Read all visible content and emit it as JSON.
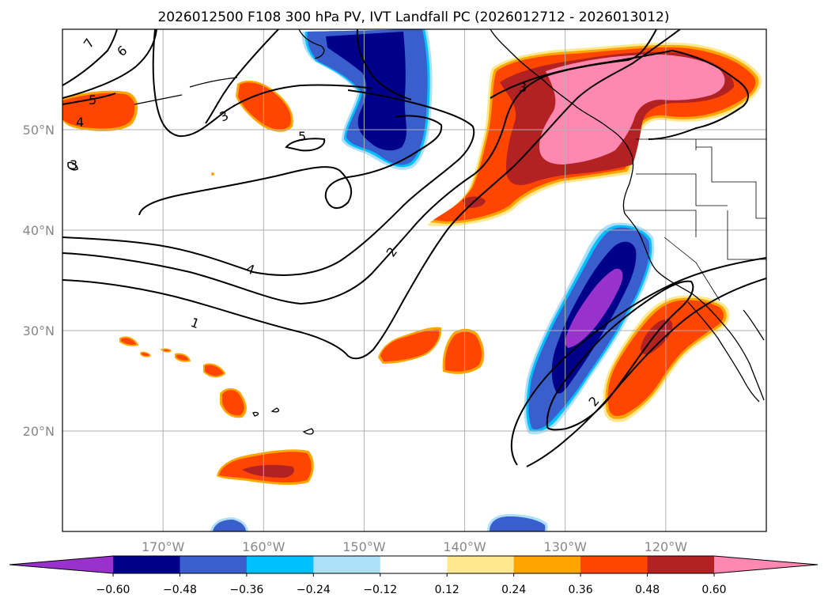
{
  "chart_data": {
    "type": "contourf_map",
    "title": "2026012500 F108 300 hPa PV, IVT Landfall PC (2026012712 - 2026013012)",
    "projection": "PlateCarree",
    "extent": {
      "lon": [
        -180,
        -110
      ],
      "lat": [
        10,
        60
      ]
    },
    "xticks": [
      {
        "lon": -170,
        "label": "170°W"
      },
      {
        "lon": -160,
        "label": "160°W"
      },
      {
        "lon": -150,
        "label": "150°W"
      },
      {
        "lon": -140,
        "label": "140°W"
      },
      {
        "lon": -130,
        "label": "130°W"
      },
      {
        "lon": -120,
        "label": "120°W"
      }
    ],
    "yticks": [
      {
        "lat": 20,
        "label": "20°N"
      },
      {
        "lat": 30,
        "label": "30°N"
      },
      {
        "lat": 40,
        "label": "40°N"
      },
      {
        "lat": 50,
        "label": "50°N"
      }
    ],
    "colorbar": {
      "levels": [
        -0.6,
        -0.48,
        -0.36,
        -0.24,
        -0.12,
        0.12,
        0.24,
        0.36,
        0.48,
        0.6
      ],
      "tick_labels": [
        "−0.60",
        "−0.48",
        "−0.36",
        "−0.24",
        "−0.12",
        "0.12",
        "0.24",
        "0.36",
        "0.48",
        "0.60"
      ],
      "colors": [
        "#9932cc",
        "#00008b",
        "#3a5fcd",
        "#00bfff",
        "#afe0fa",
        "#ffffff",
        "#ffe88f",
        "#ffa500",
        "#ff4500",
        "#b22222",
        "#ff88b0"
      ],
      "extend": "both"
    },
    "fill_regions": [
      {
        "name": "west-coast-main-positive",
        "lon": [
          -142,
          -111
        ],
        "lat": [
          41,
          57
        ],
        "max_class": 0.6
      },
      {
        "name": "gulf-alaska-negative",
        "lon": [
          -153,
          -146
        ],
        "lat": [
          45,
          60
        ],
        "max_class": -0.48
      },
      {
        "name": "offshore-california-negative",
        "lon": [
          -133,
          -124
        ],
        "lat": [
          21,
          41
        ],
        "max_class": -0.6
      },
      {
        "name": "southern-california-positive",
        "lon": [
          -127,
          -115
        ],
        "lat": [
          21,
          33
        ],
        "max_class": 0.48
      },
      {
        "name": "dateline-positive",
        "lon": [
          -180,
          -172
        ],
        "lat": [
          50,
          53
        ],
        "max_class": 0.36
      },
      {
        "name": "north-pacific-positive",
        "lon": [
          -162,
          -156
        ],
        "lat": [
          49,
          55
        ],
        "max_class": 0.36
      },
      {
        "name": "east-pacific-positive-a",
        "lon": [
          -146,
          -140
        ],
        "lat": [
          27,
          30
        ],
        "max_class": 0.36
      },
      {
        "name": "east-pacific-positive-b",
        "lon": [
          -141,
          -137
        ],
        "lat": [
          25,
          30
        ],
        "max_class": 0.36
      },
      {
        "name": "hawaii-positive",
        "lon": [
          -166,
          -162
        ],
        "lat": [
          22,
          25
        ],
        "max_class": 0.36
      },
      {
        "name": "south-positive",
        "lon": [
          -165,
          -156
        ],
        "lat": [
          15,
          18
        ],
        "max_class": 0.48
      },
      {
        "name": "south-negative-a",
        "lon": [
          -165,
          -161
        ],
        "lat": [
          10,
          11
        ],
        "max_class": -0.36
      },
      {
        "name": "south-negative-b",
        "lon": [
          -138,
          -132
        ],
        "lat": [
          10,
          12
        ],
        "max_class": -0.36
      }
    ],
    "pv_contours": [
      {
        "level": 1,
        "label": "1"
      },
      {
        "level": 2,
        "label": "2"
      },
      {
        "level": 3,
        "label": "3"
      },
      {
        "level": 4,
        "label": "4"
      },
      {
        "level": 5,
        "label": "5"
      },
      {
        "level": 6,
        "label": "6"
      },
      {
        "level": 7,
        "label": "7"
      }
    ]
  }
}
